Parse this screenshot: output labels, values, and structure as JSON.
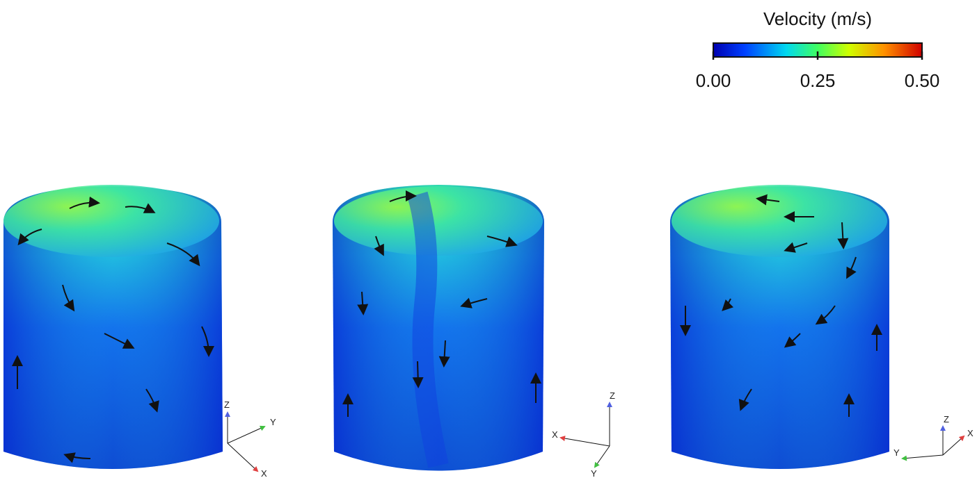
{
  "colorbar": {
    "title": "Velocity (m/s)",
    "lim": [
      0,
      0.5
    ],
    "ticks": [
      {
        "value": 0,
        "label": "0.00"
      },
      {
        "value": 0.25,
        "label": "0.25"
      },
      {
        "value": 0.5,
        "label": "0.50"
      }
    ]
  },
  "views": [
    {
      "axes": {
        "z": "Z",
        "y": "Y",
        "x": "X"
      }
    },
    {
      "axes": {
        "z": "Z",
        "x": "X",
        "y": "Y"
      }
    },
    {
      "axes": {
        "z": "Z",
        "y": "Y",
        "x": "X"
      }
    }
  ]
}
